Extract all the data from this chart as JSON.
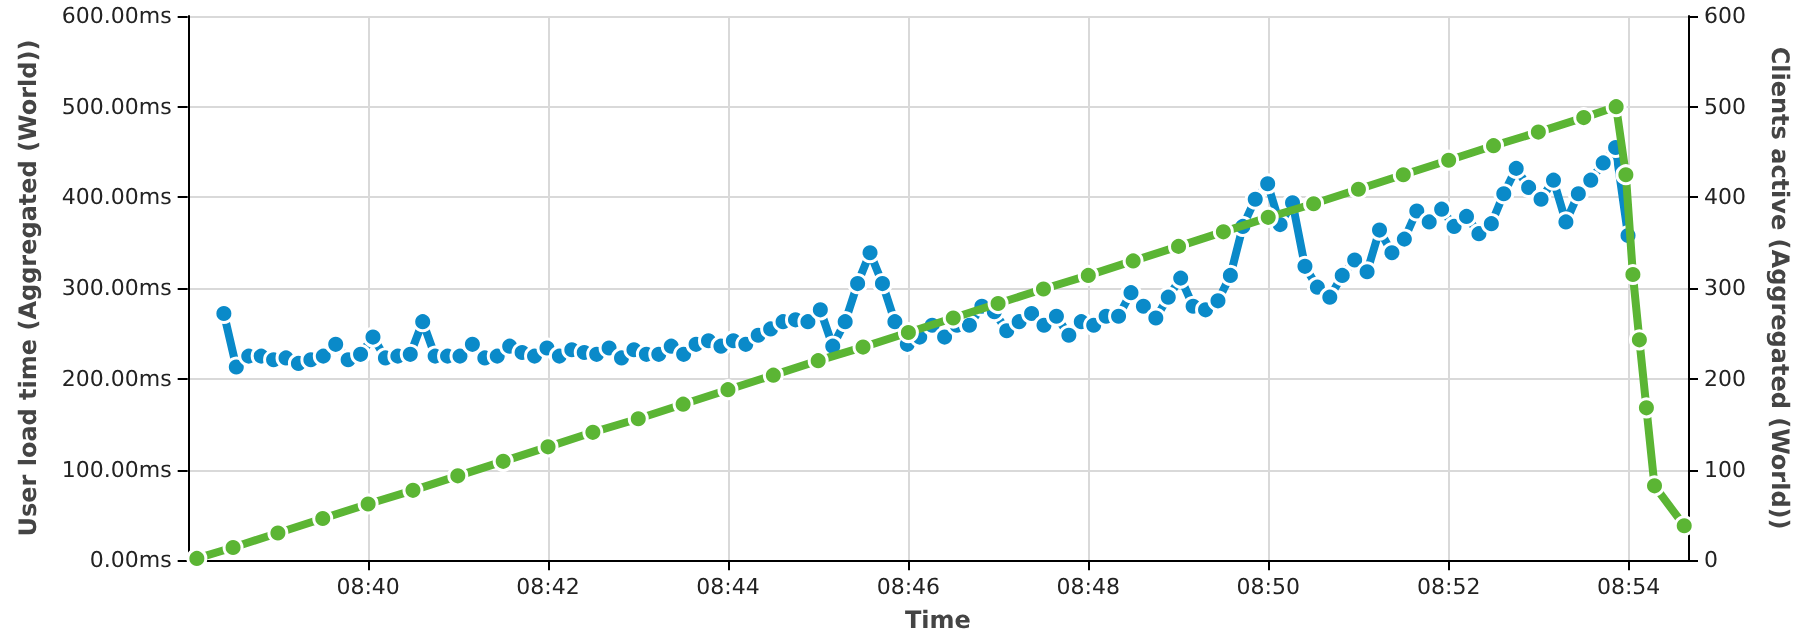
{
  "chart_data": {
    "type": "line",
    "xlabel": "Time",
    "ylabel": "User load time (Aggregated (World))",
    "y2label": "Clients active (Aggregated (World))",
    "xlim": [
      8.6333,
      8.911
    ],
    "xticks": [
      {
        "value": 8.6667,
        "label": "08:40"
      },
      {
        "value": 8.7,
        "label": "08:42"
      },
      {
        "value": 8.7333,
        "label": "08:44"
      },
      {
        "value": 8.7667,
        "label": "08:46"
      },
      {
        "value": 8.8,
        "label": "08:48"
      },
      {
        "value": 8.8333,
        "label": "08:50"
      },
      {
        "value": 8.8667,
        "label": "08:52"
      },
      {
        "value": 8.9,
        "label": "08:54"
      }
    ],
    "ylim": [
      0,
      600
    ],
    "yticks": [
      {
        "value": 0,
        "label": "0.00ms"
      },
      {
        "value": 100,
        "label": "100.00ms"
      },
      {
        "value": 200,
        "label": "200.00ms"
      },
      {
        "value": 300,
        "label": "300.00ms"
      },
      {
        "value": 400,
        "label": "400.00ms"
      },
      {
        "value": 500,
        "label": "500.00ms"
      },
      {
        "value": 600,
        "label": "600.00ms"
      }
    ],
    "y2lim": [
      0,
      600
    ],
    "y2ticks": [
      0,
      100,
      200,
      300,
      400,
      500,
      600
    ],
    "grid": true,
    "marker": "circle",
    "line_style": "solid",
    "series": [
      {
        "color": "#5bb534",
        "axis": "y2",
        "x": [
          8.635,
          8.6417,
          8.65,
          8.6583,
          8.6667,
          8.675,
          8.6833,
          8.6917,
          8.7,
          8.7083,
          8.7167,
          8.725,
          8.7333,
          8.7417,
          8.75,
          8.7583,
          8.7667,
          8.775,
          8.7833,
          8.7917,
          8.8,
          8.8083,
          8.8167,
          8.825,
          8.8333,
          8.8417,
          8.85,
          8.8583,
          8.8667,
          8.875,
          8.8833,
          8.8917,
          8.8977,
          8.8995,
          8.9008,
          8.902,
          8.9033,
          8.9048,
          8.9103
        ],
        "values": [
          2,
          14,
          30,
          46,
          62,
          77,
          93,
          109,
          125,
          141,
          156,
          172,
          188,
          204,
          220,
          235,
          251,
          267,
          283,
          299,
          314,
          330,
          346,
          362,
          378,
          393,
          409,
          425,
          441,
          457,
          472,
          488,
          500,
          425,
          315,
          243,
          168,
          82,
          38
        ]
      },
      {
        "color": "#0a8ac9",
        "axis": "y",
        "x": [
          8.64,
          8.6423,
          8.6446,
          8.6469,
          8.6492,
          8.6515,
          8.6538,
          8.6561,
          8.6584,
          8.6607,
          8.663,
          8.6653,
          8.6676,
          8.6699,
          8.6722,
          8.6745,
          8.6768,
          8.6791,
          8.6814,
          8.6837,
          8.686,
          8.6883,
          8.6906,
          8.6929,
          8.6952,
          8.6975,
          8.6998,
          8.7021,
          8.7044,
          8.7067,
          8.709,
          8.7113,
          8.7136,
          8.7159,
          8.7182,
          8.7205,
          8.7228,
          8.7251,
          8.7274,
          8.7297,
          8.732,
          8.7343,
          8.7366,
          8.7389,
          8.7412,
          8.7435,
          8.7458,
          8.7481,
          8.7504,
          8.7527,
          8.755,
          8.7573,
          8.7596,
          8.7619,
          8.7642,
          8.7665,
          8.7688,
          8.7711,
          8.7734,
          8.7757,
          8.778,
          8.7803,
          8.7826,
          8.7849,
          8.7872,
          8.7895,
          8.7918,
          8.7941,
          8.7964,
          8.7987,
          8.801,
          8.8033,
          8.8056,
          8.8079,
          8.8102,
          8.8125,
          8.8148,
          8.8171,
          8.8194,
          8.8217,
          8.824,
          8.8263,
          8.8286,
          8.8309,
          8.8332,
          8.8355,
          8.8378,
          8.8401,
          8.8424,
          8.8447,
          8.847,
          8.8493,
          8.8516,
          8.8539,
          8.8562,
          8.8585,
          8.8608,
          8.8631,
          8.8654,
          8.8677,
          8.87,
          8.8723,
          8.8746,
          8.8769,
          8.8792,
          8.8815,
          8.8838,
          8.8861,
          8.8884,
          8.8907,
          8.893,
          8.8953,
          8.8976,
          8.8999
        ],
        "values": [
          272,
          213,
          225,
          225,
          221,
          223,
          217,
          221,
          225,
          238,
          221,
          227,
          246,
          223,
          225,
          227,
          263,
          225,
          225,
          225,
          238,
          223,
          225,
          236,
          229,
          225,
          234,
          225,
          232,
          229,
          227,
          234,
          223,
          232,
          227,
          227,
          236,
          227,
          238,
          242,
          236,
          242,
          238,
          248,
          255,
          263,
          265,
          263,
          276,
          236,
          263,
          305,
          339,
          305,
          263,
          238,
          246,
          259,
          246,
          259,
          259,
          280,
          274,
          253,
          263,
          272,
          259,
          269,
          248,
          263,
          259,
          269,
          269,
          295,
          280,
          267,
          290,
          311,
          280,
          276,
          286,
          314,
          368,
          398,
          415,
          370,
          394,
          324,
          301,
          290,
          314,
          331,
          318,
          364,
          339,
          354,
          385,
          373,
          387,
          368,
          379,
          360,
          371,
          404,
          432,
          411,
          398,
          419,
          373,
          404,
          419,
          438,
          455,
          358
        ]
      }
    ]
  }
}
